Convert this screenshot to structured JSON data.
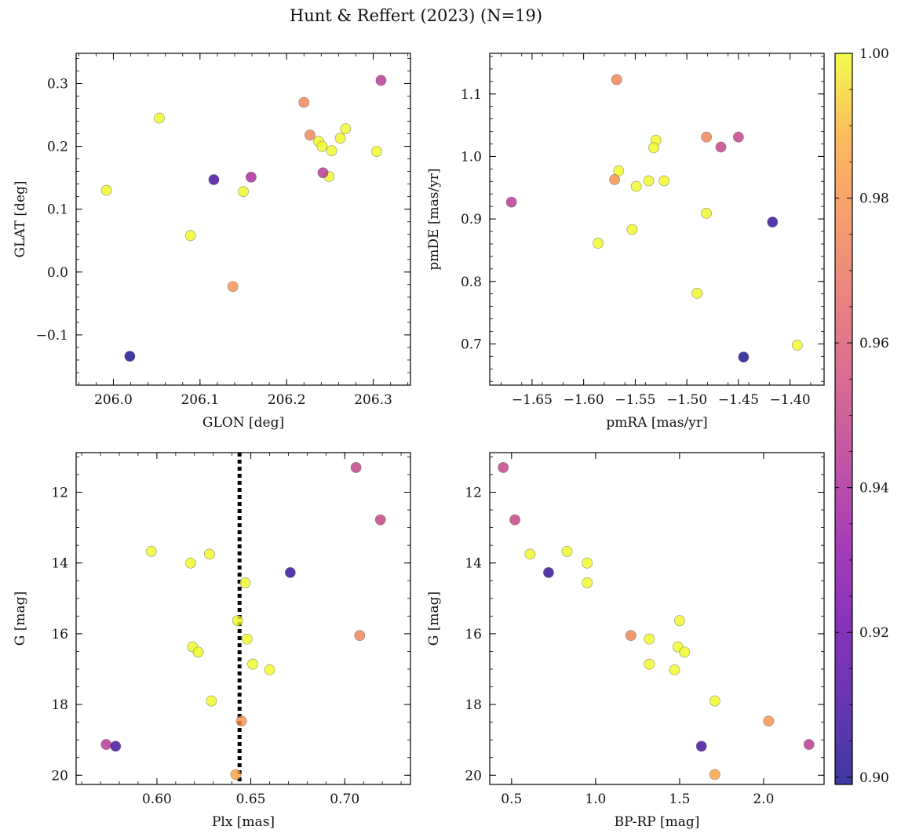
{
  "figure": {
    "title": "Hunt & Reffert (2023) (N=19)"
  },
  "colorbar": {
    "ticks": [
      0.9,
      0.92,
      0.94,
      0.96,
      0.98,
      1.0
    ],
    "tick_labels": [
      "0.90",
      "0.92",
      "0.94",
      "0.96",
      "0.98",
      "1.00"
    ],
    "range": [
      0.899,
      1.0
    ],
    "colormap": "plasma",
    "alpha": 0.8
  },
  "chart_data": [
    {
      "id": "glon-glat",
      "type": "scatter",
      "xlabel": "GLON [deg]",
      "ylabel": "GLAT [deg]",
      "xlim": [
        205.957,
        206.343
      ],
      "ylim": [
        -0.18,
        0.348
      ],
      "xticks": [
        206.0,
        206.1,
        206.2,
        206.3
      ],
      "xtick_labels": [
        "206.0",
        "206.1",
        "206.2",
        "206.3"
      ],
      "yticks": [
        -0.1,
        0.0,
        0.1,
        0.2,
        0.3
      ],
      "ytick_labels": [
        "−0.1",
        "0.0",
        "0.1",
        "0.2",
        "0.3"
      ],
      "x": [
        206.309,
        206.22,
        206.053,
        206.227,
        206.268,
        206.262,
        206.237,
        206.241,
        206.252,
        206.304,
        206.249,
        206.242,
        206.159,
        206.116,
        206.15,
        205.992,
        206.089,
        206.138,
        206.019
      ],
      "y": [
        0.305,
        0.27,
        0.245,
        0.218,
        0.228,
        0.213,
        0.208,
        0.2,
        0.193,
        0.192,
        0.152,
        0.158,
        0.151,
        0.147,
        0.128,
        0.13,
        0.058,
        -0.023,
        -0.134
      ],
      "c": [
        0.945,
        0.975,
        1.0,
        0.975,
        1.0,
        1.0,
        1.0,
        1.0,
        1.0,
        1.0,
        1.0,
        0.945,
        0.94,
        0.91,
        1.0,
        1.0,
        1.0,
        0.98,
        0.9
      ]
    },
    {
      "id": "pm",
      "type": "scatter",
      "xlabel": "pmRA [mas/yr]",
      "ylabel": "pmDE [mas/yr]",
      "xlim": [
        -1.691,
        -1.367
      ],
      "ylim": [
        0.634,
        1.165
      ],
      "xticks": [
        -1.65,
        -1.6,
        -1.55,
        -1.5,
        -1.45,
        -1.4
      ],
      "xtick_labels": [
        "−1.65",
        "−1.60",
        "−1.55",
        "−1.50",
        "−1.45",
        "−1.40"
      ],
      "yticks": [
        0.7,
        0.8,
        0.9,
        1.0,
        1.1
      ],
      "ytick_labels": [
        "0.7",
        "0.8",
        "0.9",
        "1.0",
        "1.1"
      ],
      "x": [
        -1.568,
        -1.481,
        -1.45,
        -1.467,
        -1.53,
        -1.532,
        -1.566,
        -1.57,
        -1.522,
        -1.537,
        -1.549,
        -1.67,
        -1.481,
        -1.417,
        -1.553,
        -1.586,
        -1.49,
        -1.393,
        -1.445
      ],
      "y": [
        1.123,
        1.031,
        1.031,
        1.015,
        1.026,
        1.014,
        0.977,
        0.963,
        0.961,
        0.961,
        0.952,
        0.927,
        0.909,
        0.895,
        0.883,
        0.861,
        0.781,
        0.698,
        0.679
      ],
      "c": [
        0.975,
        0.975,
        0.95,
        0.95,
        1.0,
        1.0,
        1.0,
        0.98,
        1.0,
        1.0,
        1.0,
        0.945,
        1.0,
        0.905,
        1.0,
        1.0,
        1.0,
        1.0,
        0.9
      ]
    },
    {
      "id": "plx-g",
      "type": "scatter",
      "xlabel": "Plx [mas]",
      "ylabel": "G [mag]",
      "xlim": [
        0.557,
        0.735
      ],
      "ylim": [
        20.26,
        10.88
      ],
      "xticks": [
        0.6,
        0.65,
        0.7
      ],
      "xtick_labels": [
        "0.60",
        "0.65",
        "0.70"
      ],
      "yticks": [
        12,
        14,
        16,
        18,
        20
      ],
      "ytick_labels": [
        "12",
        "14",
        "16",
        "18",
        "20"
      ],
      "vline": {
        "x": 0.644,
        "color": "#000000",
        "style": "dotted"
      },
      "x": [
        0.706,
        0.719,
        0.597,
        0.628,
        0.618,
        0.671,
        0.647,
        0.643,
        0.708,
        0.648,
        0.651,
        0.619,
        0.622,
        0.66,
        0.629,
        0.645,
        0.573,
        0.578,
        0.642
      ],
      "y": [
        11.3,
        12.78,
        13.67,
        13.75,
        14.0,
        14.27,
        14.56,
        15.63,
        16.05,
        16.15,
        16.86,
        16.37,
        16.52,
        17.02,
        17.9,
        18.47,
        19.13,
        19.18,
        19.98
      ],
      "c": [
        0.95,
        0.95,
        1.0,
        1.0,
        1.0,
        0.905,
        1.0,
        1.0,
        0.975,
        1.0,
        1.0,
        1.0,
        1.0,
        1.0,
        1.0,
        0.98,
        0.945,
        0.91,
        0.985
      ]
    },
    {
      "id": "cmd",
      "type": "scatter",
      "xlabel": "BP-RP [mag]",
      "ylabel": "G [mag]",
      "xlim": [
        0.37,
        2.36
      ],
      "ylim": [
        20.26,
        10.88
      ],
      "xticks": [
        0.5,
        1.0,
        1.5,
        2.0
      ],
      "xtick_labels": [
        "0.5",
        "1.0",
        "1.5",
        "2.0"
      ],
      "yticks": [
        12,
        14,
        16,
        18,
        20
      ],
      "ytick_labels": [
        "12",
        "14",
        "16",
        "18",
        "20"
      ],
      "x": [
        0.45,
        0.52,
        0.83,
        0.61,
        0.95,
        0.72,
        0.95,
        1.5,
        1.21,
        1.32,
        1.32,
        1.49,
        1.53,
        1.47,
        1.71,
        2.03,
        2.27,
        1.63,
        1.71
      ],
      "y": [
        11.3,
        12.78,
        13.67,
        13.75,
        14.0,
        14.27,
        14.56,
        15.63,
        16.05,
        16.15,
        16.86,
        16.37,
        16.52,
        17.02,
        17.9,
        18.47,
        19.13,
        19.18,
        19.98
      ],
      "c": [
        0.95,
        0.95,
        1.0,
        1.0,
        1.0,
        0.905,
        1.0,
        1.0,
        0.975,
        1.0,
        1.0,
        1.0,
        1.0,
        1.0,
        1.0,
        0.98,
        0.945,
        0.91,
        0.985
      ]
    }
  ]
}
